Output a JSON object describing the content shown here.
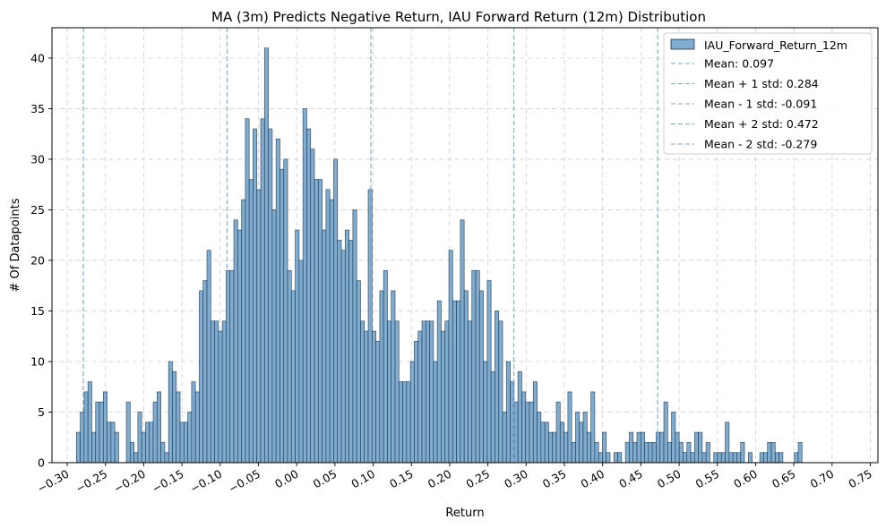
{
  "chart_data": {
    "type": "bar",
    "title": "MA (3m) Predicts Negative Return, IAU Forward Return (12m) Distribution",
    "xlabel": "Return",
    "ylabel": "# Of Datapoints",
    "xlim": [
      -0.32,
      0.76
    ],
    "ylim": [
      0,
      43
    ],
    "x_ticks": [
      -0.3,
      -0.25,
      -0.2,
      -0.15,
      -0.1,
      -0.05,
      0.0,
      0.05,
      0.1,
      0.15,
      0.2,
      0.25,
      0.3,
      0.35,
      0.4,
      0.45,
      0.5,
      0.55,
      0.6,
      0.65,
      0.7,
      0.75
    ],
    "x_tick_labels": [
      "−0.30",
      "−0.25",
      "−0.20",
      "−0.15",
      "−0.10",
      "−0.05",
      "0.00",
      "0.05",
      "0.10",
      "0.15",
      "0.20",
      "0.25",
      "0.30",
      "0.35",
      "0.40",
      "0.45",
      "0.50",
      "0.55",
      "0.60",
      "0.65",
      "0.70",
      "0.75"
    ],
    "y_ticks": [
      0,
      5,
      10,
      15,
      20,
      25,
      30,
      35,
      40
    ],
    "grid": true,
    "legend_position": "top-right",
    "bar_color": "#7fadd1",
    "bar_edge_color": "#1f2f3f",
    "line_color": "#7aa6d6",
    "series": [
      {
        "name": "IAU_Forward_Return_12m",
        "bin_start": -0.288,
        "bin_width": 0.00502,
        "counts": [
          3,
          5,
          7,
          8,
          3,
          6,
          6,
          7,
          4,
          4,
          3,
          0,
          0,
          6,
          2,
          1,
          5,
          3,
          4,
          4,
          6,
          7,
          2,
          1,
          10,
          9,
          7,
          4,
          4,
          5,
          8,
          7,
          17,
          18,
          21,
          14,
          14,
          13,
          14,
          19,
          19,
          24,
          23,
          26,
          34,
          28,
          33,
          27,
          34,
          41,
          33,
          25,
          32,
          29,
          30,
          19,
          17,
          23,
          20,
          35,
          33,
          31,
          28,
          28,
          23,
          27,
          26,
          30,
          22,
          21,
          23,
          22,
          25,
          18,
          14,
          13,
          27,
          13,
          12,
          17,
          19,
          14,
          17,
          14,
          8,
          8,
          8,
          10,
          12,
          13,
          14,
          14,
          14,
          10,
          16,
          13,
          14,
          21,
          16,
          16,
          24,
          17,
          14,
          19,
          19,
          17,
          10,
          18,
          9,
          15,
          14,
          5,
          10,
          8,
          6,
          9,
          7,
          6,
          6,
          8,
          5,
          4,
          4,
          3,
          3,
          6,
          4,
          3,
          7,
          2,
          5,
          4,
          5,
          3,
          7,
          2,
          1,
          3,
          1,
          0,
          1,
          1,
          0,
          2,
          3,
          2,
          3,
          3,
          2,
          2,
          2,
          3,
          3,
          6,
          2,
          5,
          3,
          2,
          1,
          2,
          1,
          3,
          3,
          1,
          2,
          0,
          1,
          1,
          1,
          4,
          1,
          1,
          1,
          2,
          0,
          1,
          0,
          0,
          1,
          1,
          2,
          2,
          1,
          1,
          0,
          0,
          0,
          1,
          2
        ]
      }
    ],
    "reference_lines": [
      {
        "name": "Mean: 0.097",
        "x": 0.097
      },
      {
        "name": "Mean + 1 std: 0.284",
        "x": 0.284
      },
      {
        "name": "Mean - 1 std: -0.091",
        "x": -0.091
      },
      {
        "name": "Mean + 2 std: 0.472",
        "x": 0.472
      },
      {
        "name": "Mean - 2 std: -0.279",
        "x": -0.279
      }
    ]
  }
}
